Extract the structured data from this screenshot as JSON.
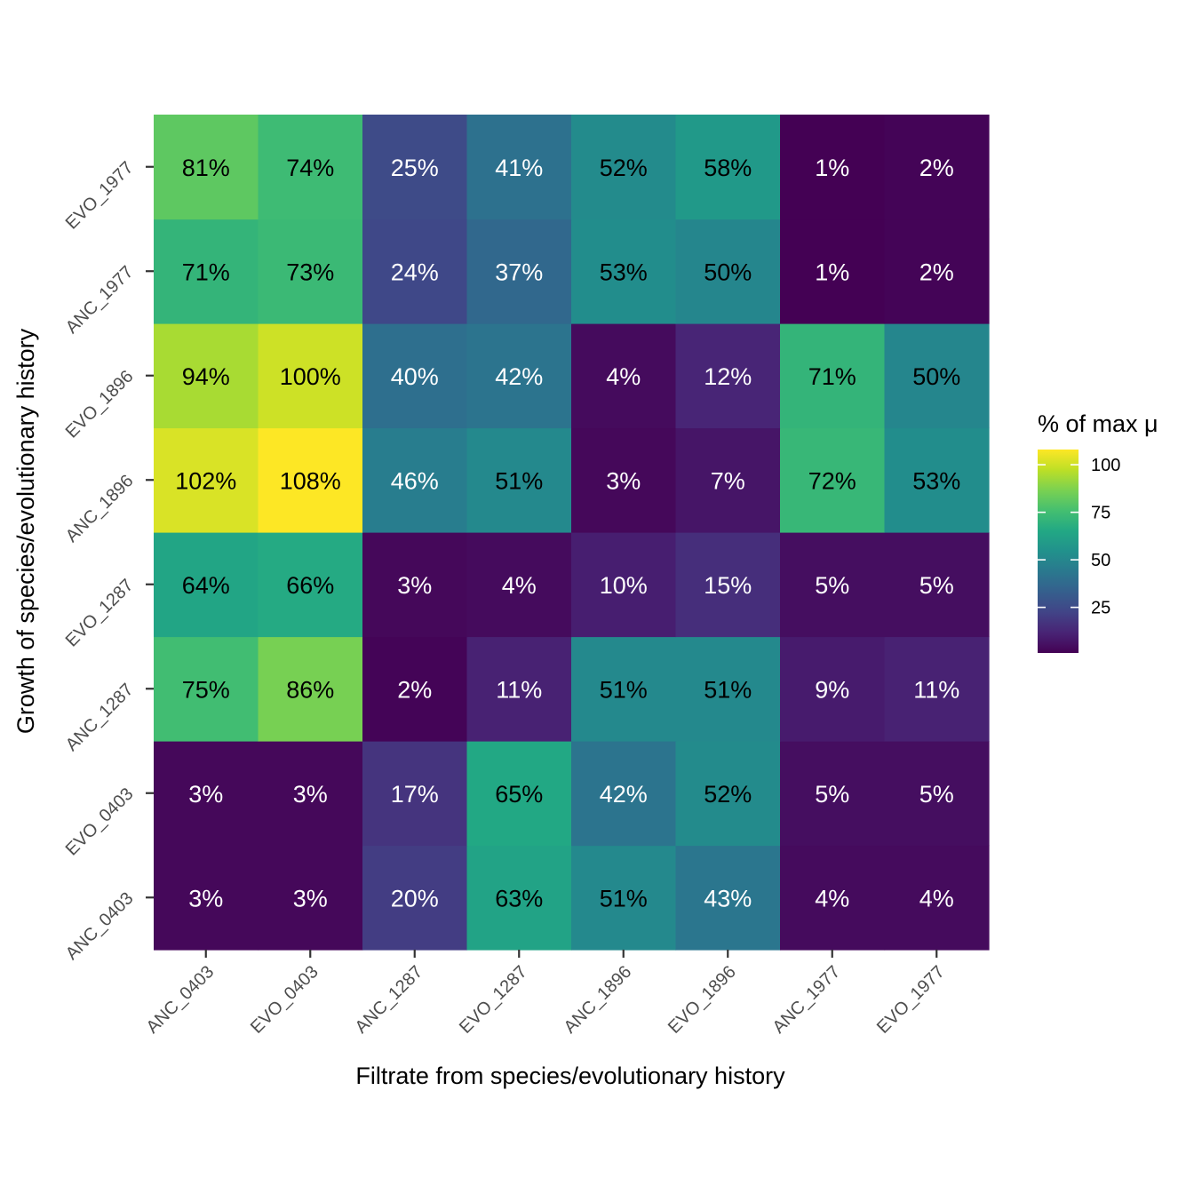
{
  "chart_data": {
    "type": "heatmap",
    "title": "",
    "xlabel": "Filtrate from species/evolutionary history",
    "ylabel": "Growth of species/evolutionary history",
    "x_categories": [
      "ANC_0403",
      "EVO_0403",
      "ANC_1287",
      "EVO_1287",
      "ANC_1896",
      "EVO_1896",
      "ANC_1977",
      "EVO_1977"
    ],
    "y_categories": [
      "ANC_0403",
      "EVO_0403",
      "ANC_1287",
      "EVO_1287",
      "ANC_1896",
      "EVO_1896",
      "ANC_1977",
      "EVO_1977"
    ],
    "values": [
      [
        3,
        3,
        20,
        63,
        51,
        43,
        4,
        4
      ],
      [
        3,
        3,
        17,
        65,
        42,
        52,
        5,
        5
      ],
      [
        75,
        86,
        2,
        11,
        51,
        51,
        9,
        11
      ],
      [
        64,
        66,
        3,
        4,
        10,
        15,
        5,
        5
      ],
      [
        102,
        108,
        46,
        51,
        3,
        7,
        72,
        53
      ],
      [
        94,
        100,
        40,
        42,
        4,
        12,
        71,
        50
      ],
      [
        71,
        73,
        24,
        37,
        53,
        50,
        1,
        2
      ],
      [
        81,
        74,
        25,
        41,
        52,
        58,
        1,
        2
      ]
    ],
    "value_suffix": "%",
    "legend": {
      "title": "% of max μ",
      "ticks": [
        25,
        50,
        75,
        100
      ],
      "range": [
        1,
        108
      ],
      "placement": "right"
    },
    "colormap": "viridis",
    "colors": {
      "low": "#440154",
      "high": "#fde725",
      "label_light": "#ffffff",
      "label_dark": "#000000",
      "tick_text": "#4d4d4d",
      "tick_mark": "#333333"
    }
  }
}
